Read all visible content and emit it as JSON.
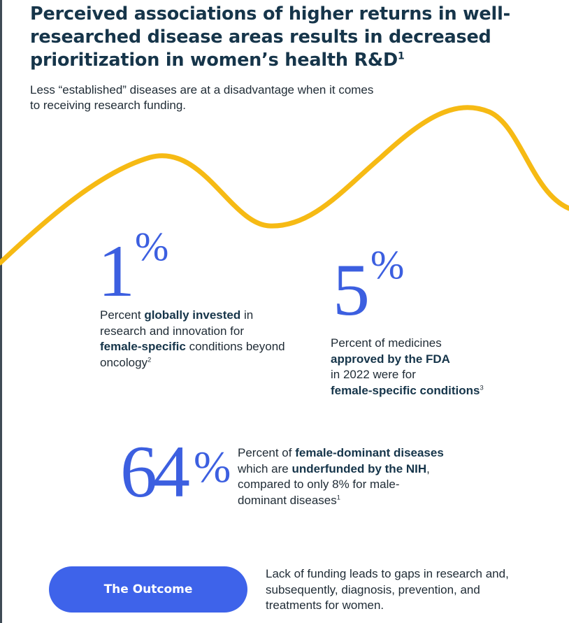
{
  "title": {
    "text": "Perceived associations of higher returns in well-researched disease areas results in decreased prioritization in women’s health R&D",
    "ref": "1"
  },
  "subtitle": "Less “established” diseases are at a disadvantage when it comes to receiving research funding.",
  "decor": {
    "wave_color": "#F6BA14",
    "accent_color": "#3C5FE0",
    "text_color": "#16354A"
  },
  "stats": [
    {
      "value": "1",
      "unit": "%",
      "desc": {
        "p1": "Percent ",
        "b1": "globally invested",
        "p2": " in research and innovation for ",
        "b2": "female-specific",
        "p3": " conditions beyond oncology",
        "ref": "2"
      }
    },
    {
      "value": "5",
      "unit": "%",
      "desc": {
        "p1": "Percent of medicines",
        "b1": "approved by the FDA",
        "p2": "in 2022 were for",
        "b2": "female-specific conditions",
        "ref": "3"
      }
    },
    {
      "value": "64",
      "unit": "%",
      "desc": {
        "p1": "Percent of ",
        "b1": "female-dominant diseases",
        "p2": " which are ",
        "b2": "underfunded by the NIH",
        "p3": ", compared to only 8% for male-dominant diseases",
        "ref": "1"
      }
    }
  ],
  "outcome": {
    "button_label": "The Outcome",
    "text": "Lack of funding leads to gaps in research and, subsequently, diagnosis, prevention, and treatments for women."
  }
}
